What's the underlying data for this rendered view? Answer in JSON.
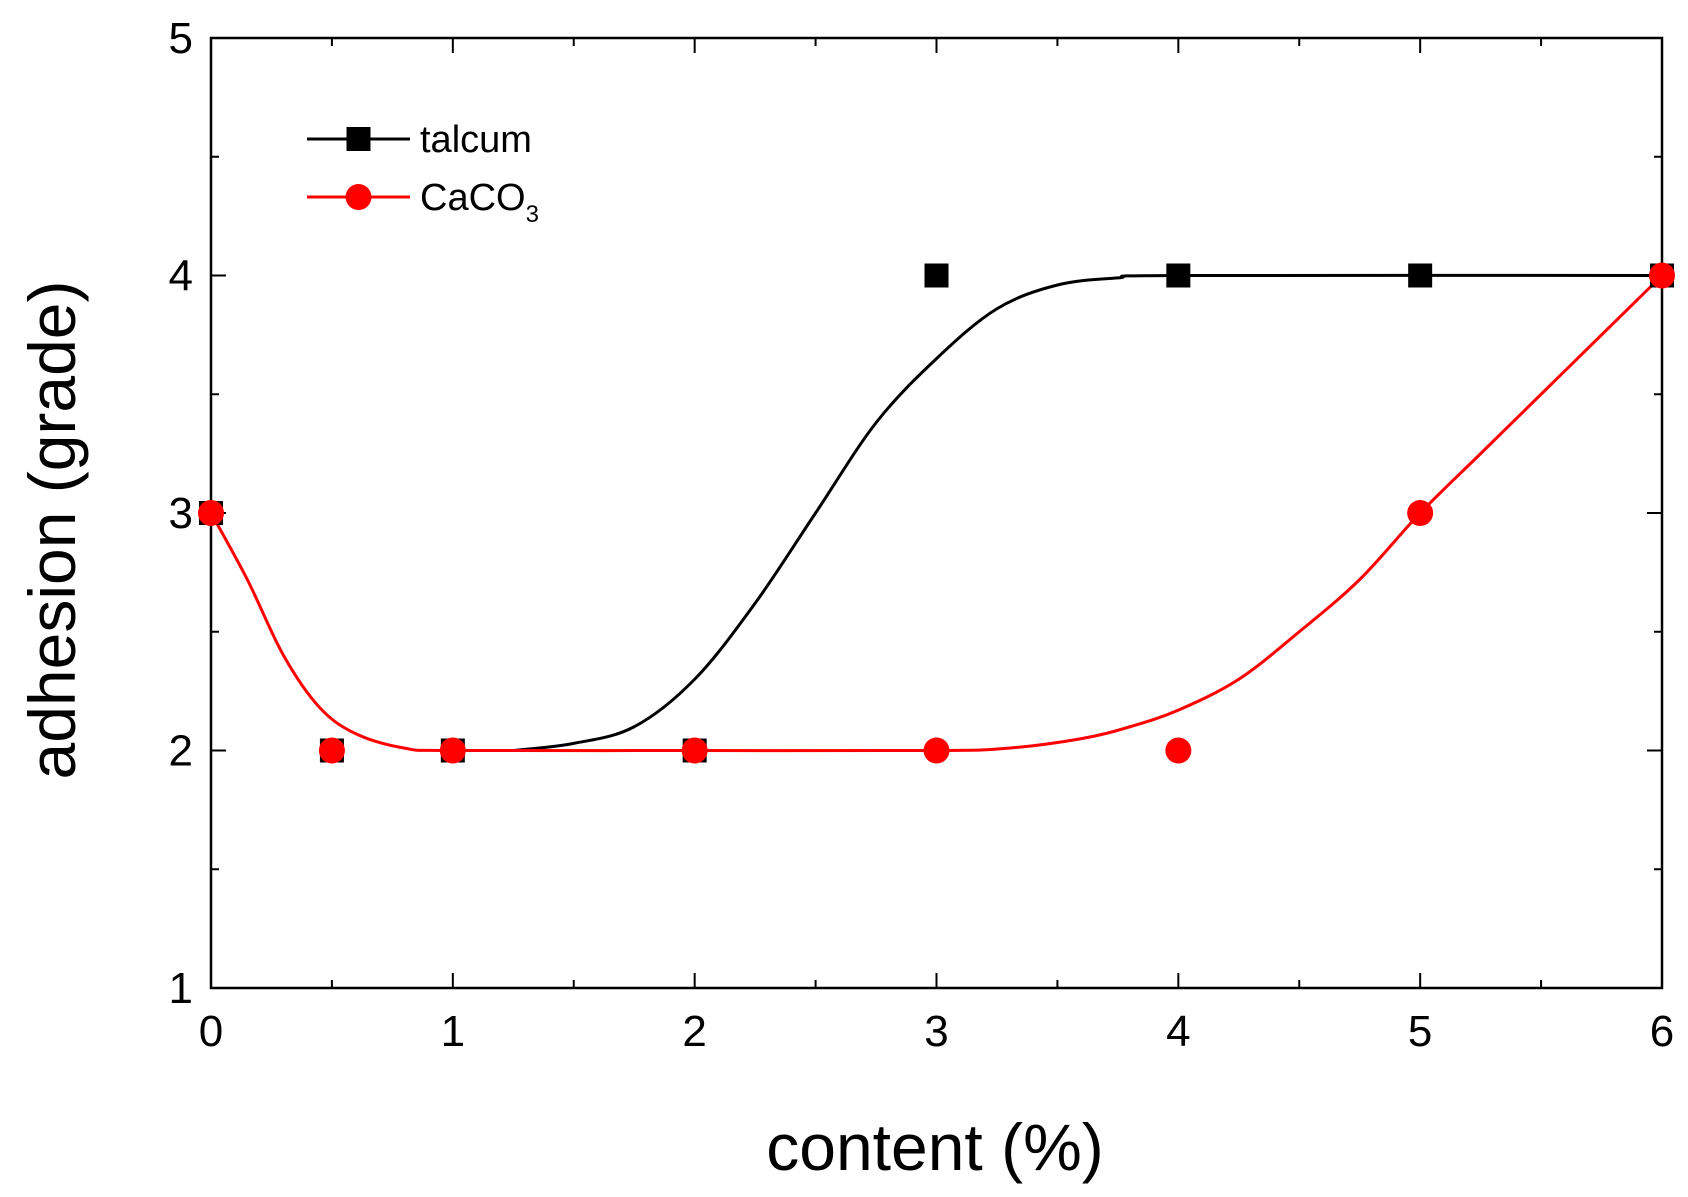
{
  "chart_data": {
    "type": "scatter",
    "title": "",
    "xlabel": "content (%)",
    "ylabel": "adhesion (grade)",
    "xlim": [
      0,
      6
    ],
    "ylim": [
      1,
      5
    ],
    "xticks": [
      0,
      1,
      2,
      3,
      4,
      5,
      6
    ],
    "yticks": [
      1,
      2,
      3,
      4,
      5
    ],
    "x_minor_step": 0.5,
    "y_minor_step": 0.5,
    "grid": false,
    "legend_position": "top-left",
    "series": [
      {
        "name": "talcum",
        "legend_label": "talcum",
        "marker": "square",
        "color": "#000000",
        "points": [
          [
            0,
            3
          ],
          [
            0.5,
            2
          ],
          [
            1,
            2
          ],
          [
            2,
            2
          ],
          [
            3,
            4
          ],
          [
            4,
            4
          ],
          [
            5,
            4
          ],
          [
            6,
            4
          ]
        ],
        "fit_curve": [
          [
            1.25,
            2.0
          ],
          [
            1.5,
            2.03
          ],
          [
            1.75,
            2.1
          ],
          [
            2,
            2.3
          ],
          [
            2.25,
            2.62
          ],
          [
            2.5,
            3.0
          ],
          [
            2.75,
            3.38
          ],
          [
            3,
            3.65
          ],
          [
            3.25,
            3.86
          ],
          [
            3.5,
            3.96
          ],
          [
            3.75,
            3.99
          ],
          [
            4,
            4.0
          ],
          [
            6,
            4.0
          ]
        ]
      },
      {
        "name": "CaCO3",
        "legend_label": "CaCO",
        "legend_subscript": "3",
        "marker": "circle",
        "color": "#ff0000",
        "points": [
          [
            0,
            3
          ],
          [
            0.5,
            2
          ],
          [
            1,
            2
          ],
          [
            2,
            2
          ],
          [
            3,
            2
          ],
          [
            4,
            2
          ],
          [
            5,
            3
          ],
          [
            6,
            4
          ]
        ],
        "fit_curve": [
          [
            0,
            3.0
          ],
          [
            0.15,
            2.72
          ],
          [
            0.3,
            2.4
          ],
          [
            0.45,
            2.18
          ],
          [
            0.6,
            2.07
          ],
          [
            0.8,
            2.01
          ],
          [
            1,
            2.0
          ],
          [
            2,
            2.0
          ],
          [
            3,
            2.0
          ],
          [
            3.3,
            2.01
          ],
          [
            3.6,
            2.05
          ],
          [
            3.8,
            2.1
          ],
          [
            4,
            2.17
          ],
          [
            4.25,
            2.3
          ],
          [
            4.5,
            2.5
          ],
          [
            4.75,
            2.72
          ],
          [
            5,
            3.0
          ],
          [
            5.25,
            3.25
          ],
          [
            5.5,
            3.5
          ],
          [
            5.75,
            3.75
          ],
          [
            6,
            4.0
          ]
        ]
      }
    ]
  }
}
